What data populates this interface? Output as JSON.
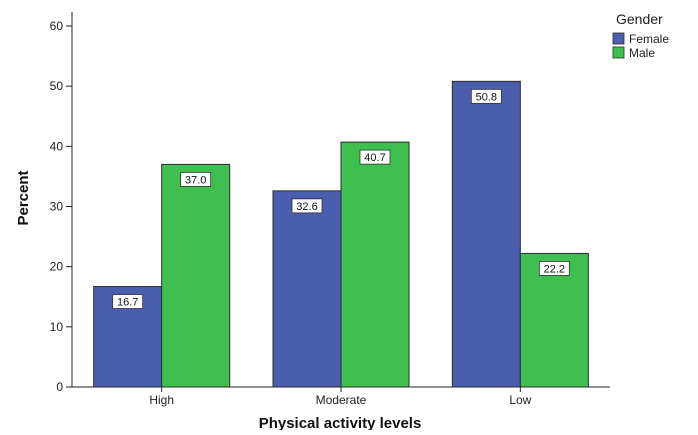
{
  "chart_data": {
    "type": "bar",
    "title": "",
    "xlabel": "Physical activity levels",
    "ylabel": "Percent",
    "categories": [
      "High",
      "Moderate",
      "Low"
    ],
    "series": [
      {
        "name": "Female",
        "values": [
          16.7,
          32.6,
          50.8
        ],
        "labels": [
          "16.7",
          "32.6",
          "50.8"
        ],
        "color": "#4a5ead"
      },
      {
        "name": "Male",
        "values": [
          37.0,
          40.7,
          22.2
        ],
        "labels": [
          "37.0",
          "40.7",
          "22.2"
        ],
        "color": "#3fbf4f"
      }
    ],
    "ylim": [
      0,
      60
    ],
    "yticks": [
      0,
      10,
      20,
      30,
      40,
      50,
      60
    ],
    "grid": false,
    "legend": {
      "title": "Gender",
      "position": "top-right"
    },
    "colors": {
      "female": "#4a5ead",
      "male": "#3fbf4f",
      "bar_stroke": "#2b2b2b"
    }
  }
}
